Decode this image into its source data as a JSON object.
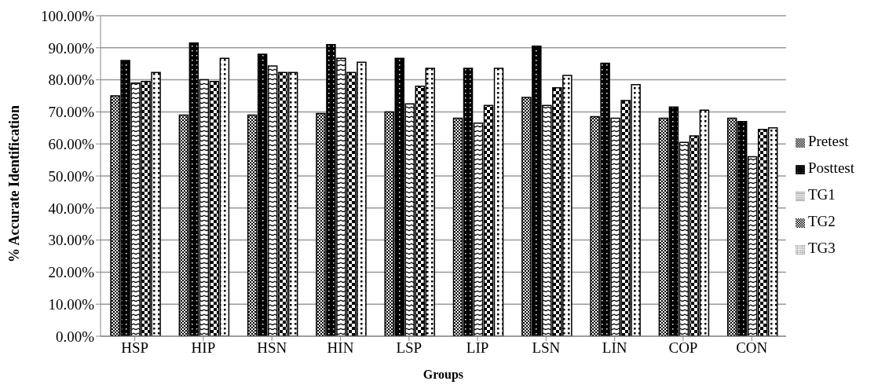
{
  "chart_data": {
    "type": "bar",
    "xlabel": "Groups",
    "ylabel": "% Accurate Identification",
    "categories": [
      "HSP",
      "HIP",
      "HSN",
      "HIN",
      "LSP",
      "LIP",
      "LSN",
      "LIN",
      "COP",
      "CON"
    ],
    "series": [
      {
        "name": "Pretest",
        "color": "#000000",
        "values": [
          75,
          69,
          69,
          69.5,
          70,
          68,
          74.5,
          68.5,
          68,
          68
        ]
      },
      {
        "name": "Posttest",
        "color": "#000000",
        "values": [
          86,
          91.5,
          88,
          91,
          86.7,
          83.6,
          90.5,
          85.2,
          71.5,
          67
        ]
      },
      {
        "name": "TG1",
        "color": "#000000",
        "values": [
          79,
          80,
          84.3,
          86.7,
          72.5,
          66.5,
          72,
          68,
          60.5,
          56
        ]
      },
      {
        "name": "TG2",
        "color": "#000000",
        "values": [
          79.5,
          79.5,
          82.3,
          82.3,
          78,
          72,
          77.5,
          73.5,
          62.5,
          64.5
        ]
      },
      {
        "name": "TG3",
        "color": "#000000",
        "values": [
          82.3,
          86.7,
          82.3,
          85.5,
          83.6,
          83.6,
          81.4,
          78.5,
          70.5,
          65
        ]
      }
    ],
    "ylim": [
      0,
      100
    ],
    "yticks": [
      {
        "value": 0,
        "label": "0.00%"
      },
      {
        "value": 10,
        "label": "10.00%"
      },
      {
        "value": 20,
        "label": "20.00%"
      },
      {
        "value": 30,
        "label": "30.00%"
      },
      {
        "value": 40,
        "label": "40.00%"
      },
      {
        "value": 50,
        "label": "50.00%"
      },
      {
        "value": 60,
        "label": "60.00%"
      },
      {
        "value": 70,
        "label": "70.00%"
      },
      {
        "value": 80,
        "label": "80.00%"
      },
      {
        "value": 90,
        "label": "90.00%"
      },
      {
        "value": 100,
        "label": "100.00%"
      }
    ],
    "grid": "y",
    "legend": "right"
  }
}
